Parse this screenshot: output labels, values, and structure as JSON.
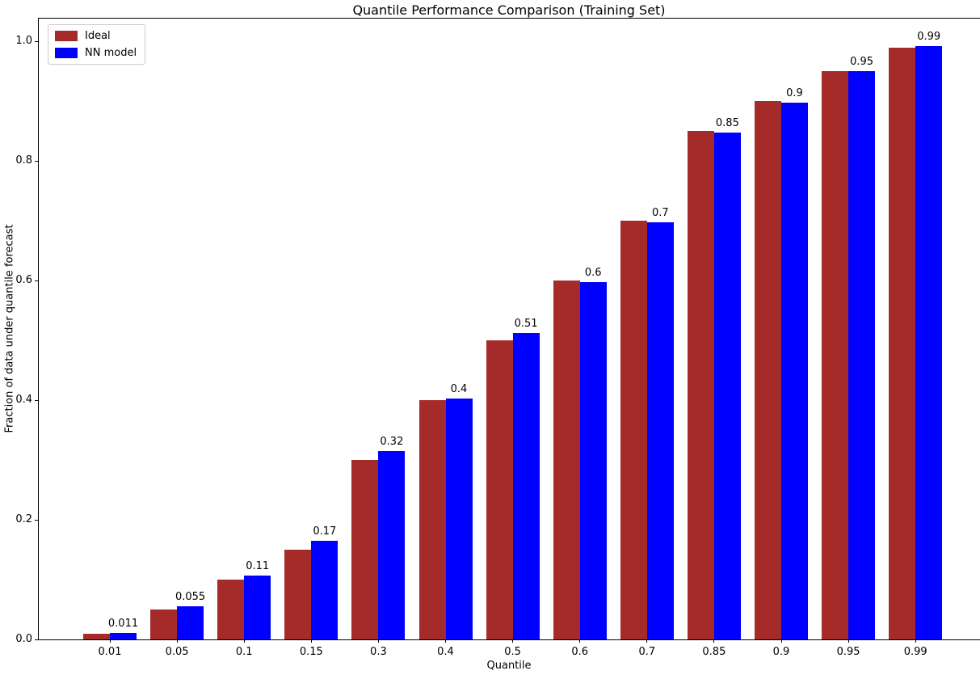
{
  "chart_data": {
    "type": "bar",
    "title": "Quantile Performance Comparison (Training Set)",
    "xlabel": "Quantile",
    "ylabel": "Fraction of data under quantile forecast",
    "categories": [
      "0.01",
      "0.05",
      "0.1",
      "0.15",
      "0.3",
      "0.4",
      "0.5",
      "0.6",
      "0.7",
      "0.85",
      "0.9",
      "0.95",
      "0.99"
    ],
    "series": [
      {
        "name": "Ideal",
        "color": "#A52A2A",
        "values": [
          0.01,
          0.05,
          0.1,
          0.15,
          0.3,
          0.4,
          0.5,
          0.6,
          0.7,
          0.85,
          0.9,
          0.95,
          0.99
        ]
      },
      {
        "name": "NN model",
        "color": "#0000FF",
        "values": [
          0.011,
          0.055,
          0.107,
          0.165,
          0.315,
          0.403,
          0.512,
          0.597,
          0.697,
          0.847,
          0.897,
          0.95,
          0.992
        ],
        "value_labels": [
          "0.011",
          "0.055",
          "0.11",
          "0.17",
          "0.32",
          "0.4",
          "0.51",
          "0.6",
          "0.7",
          "0.85",
          "0.9",
          "0.95",
          "0.99"
        ]
      }
    ],
    "ytick_labels": [
      "0.0",
      "0.2",
      "0.4",
      "0.6",
      "0.8",
      "1.0"
    ],
    "yticks": [
      0.0,
      0.2,
      0.4,
      0.6,
      0.8,
      1.0
    ],
    "ylim": [
      0,
      1.038
    ],
    "grid": false,
    "legend_position": "upper left",
    "value_labels_on_series": "NN model"
  }
}
